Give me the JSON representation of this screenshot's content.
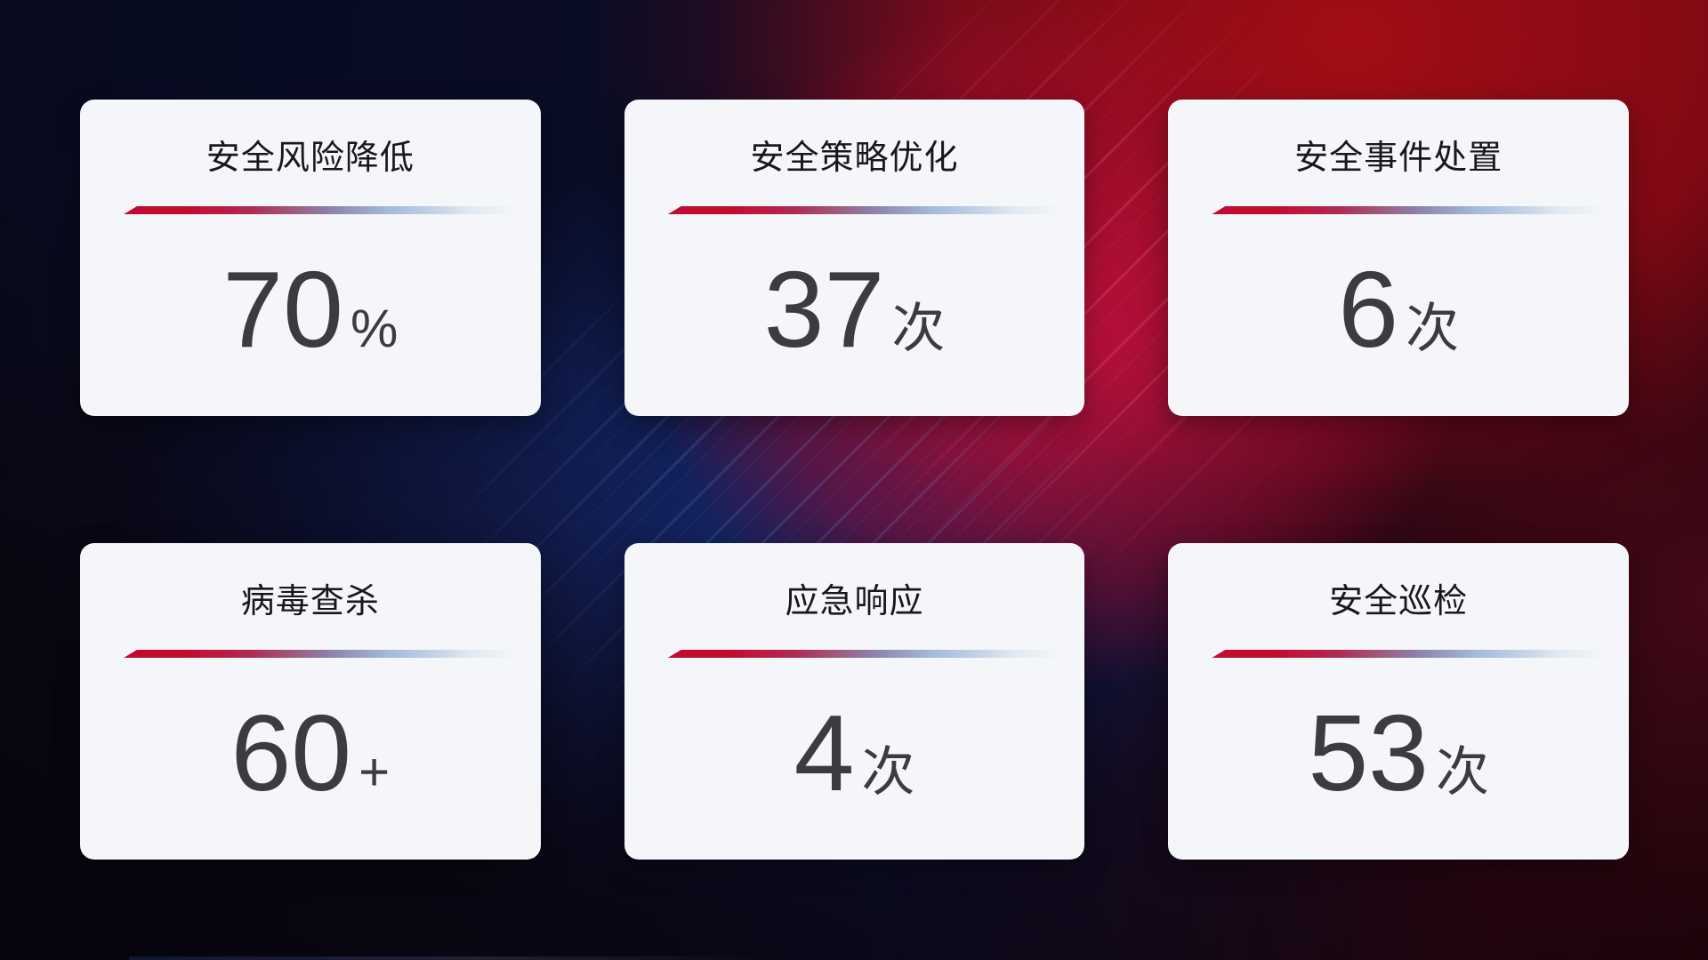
{
  "cards": [
    {
      "title": "安全风险降低",
      "value": "70",
      "unit": "%"
    },
    {
      "title": "安全策略优化",
      "value": "37",
      "unit": "次"
    },
    {
      "title": "安全事件处置",
      "value": "6",
      "unit": "次"
    },
    {
      "title": "病毒查杀",
      "value": "60",
      "unit": "+"
    },
    {
      "title": "应急响应",
      "value": "4",
      "unit": "次"
    },
    {
      "title": "安全巡检",
      "value": "53",
      "unit": "次"
    }
  ],
  "colors": {
    "card_background": "#f4f6f9",
    "title_text": "#17171c",
    "value_text": "#3b3b41",
    "divider_start": "#c30a31",
    "divider_mid": "#8d82a8",
    "divider_end": "#a2b9da",
    "background_navy": "#0b1030",
    "background_red": "#a30d14",
    "background_crimson": "#c5103e"
  }
}
